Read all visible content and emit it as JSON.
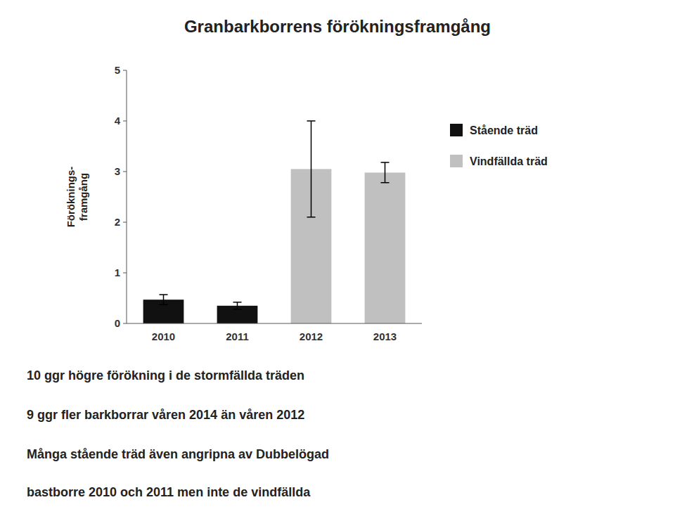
{
  "chart_data": {
    "type": "bar",
    "title": "Granbarkborrens förökningsframgång",
    "ylabel": "Föröknings-\nframgång",
    "categories": [
      "2010",
      "2011",
      "2012",
      "2013"
    ],
    "series": [
      {
        "name": "Stående träd",
        "color": "#111111",
        "values": [
          0.47,
          0.35,
          null,
          null
        ],
        "errors": [
          0.1,
          0.07,
          null,
          null
        ]
      },
      {
        "name": "Vindfällda träd",
        "color": "#c0c0c0",
        "values": [
          null,
          null,
          3.05,
          2.98
        ],
        "errors": [
          null,
          null,
          0.95,
          0.2
        ]
      }
    ],
    "ylim": [
      0,
      5
    ],
    "yticks": [
      0,
      1,
      2,
      3,
      4,
      5
    ],
    "grid": false,
    "legend": "right",
    "annotations": [
      "10 ggr högre förökning i de stormfällda träden",
      "9 ggr fler barkborrar våren 2014 än våren 2012",
      "Många stående träd även angripna av Dubbelögad",
      "bastborre 2010 och 2011 men inte de vindfällda"
    ]
  }
}
